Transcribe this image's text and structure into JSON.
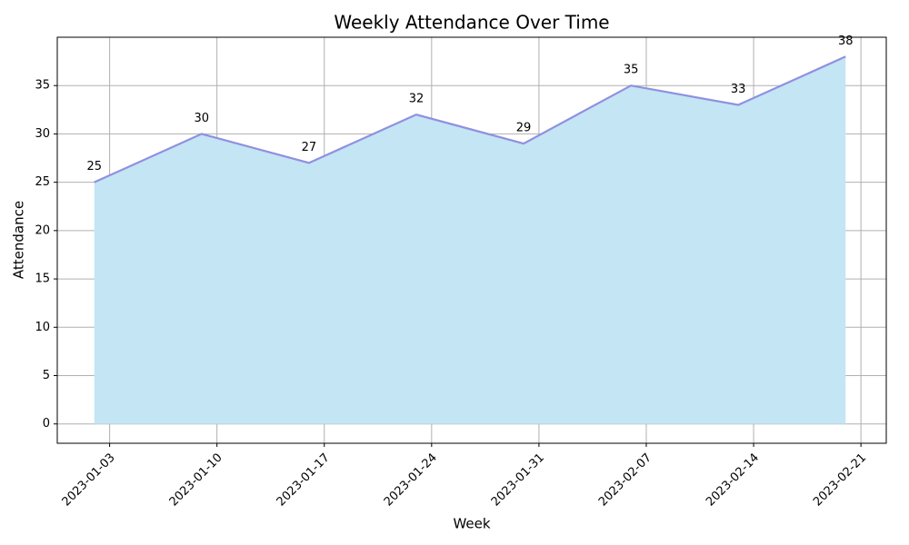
{
  "chart_data": {
    "type": "area",
    "title": "Weekly Attendance Over Time",
    "xlabel": "Week",
    "ylabel": "Attendance",
    "x": [
      "2023-01-02",
      "2023-01-09",
      "2023-01-16",
      "2023-01-23",
      "2023-01-30",
      "2023-02-06",
      "2023-02-13",
      "2023-02-20"
    ],
    "values": [
      25,
      30,
      27,
      32,
      29,
      35,
      33,
      38
    ],
    "line_color": "#9090e0",
    "fill_color": "#c3e5f4",
    "xlim": [
      "2022-12-31",
      "2023-02-22"
    ],
    "xticks": [
      "2023-01-03",
      "2023-01-10",
      "2023-01-17",
      "2023-01-24",
      "2023-01-31",
      "2023-02-07",
      "2023-02-14",
      "2023-02-21"
    ],
    "ylim": [
      -2,
      40
    ],
    "yticks": [
      0,
      5,
      10,
      15,
      20,
      25,
      30,
      35
    ],
    "grid": true
  }
}
